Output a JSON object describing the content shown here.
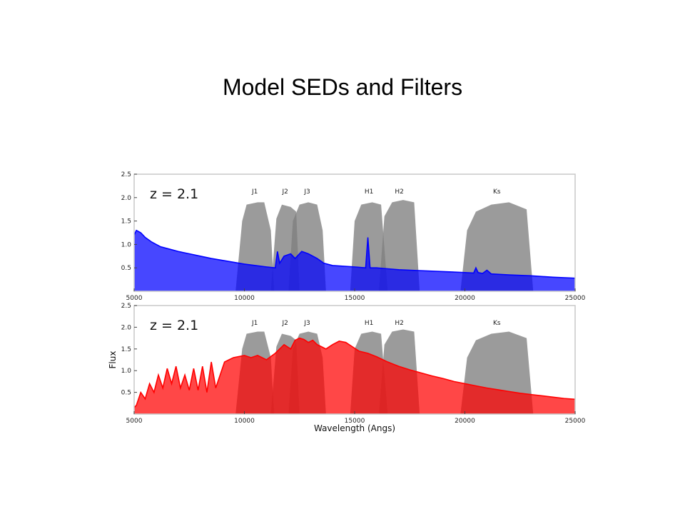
{
  "slide": {
    "title": "Model SEDs and Filters"
  },
  "colors": {
    "filter": "#7f7f7f",
    "blue_sed": "#0000ff",
    "red_sed": "#ff0000",
    "frame": "#c8c8c8"
  },
  "chart_data": [
    {
      "type": "area",
      "annotation": "z = 2.1",
      "xlabel": "",
      "ylabel": "",
      "xlim": [
        5000,
        25000
      ],
      "ylim": [
        0,
        2.5
      ],
      "xticks": [
        5000,
        10000,
        15000,
        20000,
        25000
      ],
      "yticks": [
        0.5,
        1.0,
        1.5,
        2.0,
        2.5
      ],
      "grid": false,
      "filters": [
        {
          "name": "J1",
          "x": [
            9600,
            9900,
            10100,
            10600,
            10900,
            11200,
            11350
          ],
          "y": [
            0,
            1.5,
            1.85,
            1.9,
            1.9,
            1.3,
            0
          ]
        },
        {
          "name": "J2",
          "x": [
            11200,
            11450,
            11700,
            12100,
            12350,
            12500
          ],
          "y": [
            0,
            1.55,
            1.85,
            1.8,
            1.7,
            0
          ]
        },
        {
          "name": "J3",
          "x": [
            12000,
            12200,
            12500,
            12900,
            13300,
            13550,
            13700
          ],
          "y": [
            0,
            1.5,
            1.85,
            1.9,
            1.85,
            1.3,
            0
          ]
        },
        {
          "name": "H1",
          "x": [
            14800,
            15000,
            15300,
            15800,
            16200,
            16500
          ],
          "y": [
            0,
            1.5,
            1.85,
            1.9,
            1.85,
            0
          ]
        },
        {
          "name": "H2",
          "x": [
            16100,
            16350,
            16700,
            17200,
            17700,
            17950
          ],
          "y": [
            0,
            1.6,
            1.9,
            1.95,
            1.9,
            0
          ]
        },
        {
          "name": "Ks",
          "x": [
            19800,
            20100,
            20500,
            21200,
            22000,
            22800,
            23100
          ],
          "y": [
            0,
            1.3,
            1.7,
            1.85,
            1.9,
            1.75,
            0
          ]
        }
      ],
      "series": [
        {
          "x": [
            5000,
            5100,
            5300,
            5500,
            5800,
            6200,
            6600,
            7000,
            7500,
            8000,
            8500,
            9000,
            9500,
            10000,
            10500,
            11000,
            11400,
            11500,
            11600,
            11800,
            12100,
            12300,
            12600,
            12900,
            13300,
            13600,
            14000,
            15000,
            15500,
            15600,
            15700,
            16000,
            16500,
            17000,
            18000,
            19000,
            20000,
            20400,
            20500,
            20600,
            20800,
            21000,
            21200,
            22000,
            23000,
            24000,
            25000
          ],
          "y": [
            1.2,
            1.3,
            1.25,
            1.15,
            1.05,
            0.95,
            0.9,
            0.85,
            0.8,
            0.75,
            0.7,
            0.66,
            0.62,
            0.58,
            0.55,
            0.52,
            0.5,
            0.85,
            0.6,
            0.75,
            0.8,
            0.7,
            0.85,
            0.8,
            0.7,
            0.6,
            0.55,
            0.52,
            0.5,
            1.15,
            0.5,
            0.5,
            0.48,
            0.46,
            0.44,
            0.42,
            0.4,
            0.39,
            0.5,
            0.4,
            0.38,
            0.45,
            0.37,
            0.35,
            0.33,
            0.3,
            0.28
          ]
        }
      ]
    },
    {
      "type": "area",
      "annotation": "z = 2.1",
      "xlabel": "Wavelength (Angs)",
      "ylabel": "Flux",
      "xlim": [
        5000,
        25000
      ],
      "ylim": [
        0,
        2.5
      ],
      "xticks": [
        5000,
        10000,
        15000,
        20000,
        25000
      ],
      "yticks": [
        0.5,
        1.0,
        1.5,
        2.0,
        2.5
      ],
      "grid": false,
      "filters": [
        {
          "name": "J1",
          "x": [
            9600,
            9900,
            10100,
            10600,
            10900,
            11200,
            11350
          ],
          "y": [
            0,
            1.5,
            1.85,
            1.9,
            1.9,
            1.3,
            0
          ]
        },
        {
          "name": "J2",
          "x": [
            11200,
            11450,
            11700,
            12100,
            12350,
            12500
          ],
          "y": [
            0,
            1.55,
            1.85,
            1.8,
            1.7,
            0
          ]
        },
        {
          "name": "J3",
          "x": [
            12000,
            12200,
            12500,
            12900,
            13300,
            13550,
            13700
          ],
          "y": [
            0,
            1.5,
            1.85,
            1.9,
            1.85,
            1.3,
            0
          ]
        },
        {
          "name": "H1",
          "x": [
            14800,
            15000,
            15300,
            15800,
            16200,
            16500
          ],
          "y": [
            0,
            1.5,
            1.85,
            1.9,
            1.85,
            0
          ]
        },
        {
          "name": "H2",
          "x": [
            16100,
            16350,
            16700,
            17200,
            17700,
            17950
          ],
          "y": [
            0,
            1.6,
            1.9,
            1.95,
            1.9,
            0
          ]
        },
        {
          "name": "Ks",
          "x": [
            19800,
            20100,
            20500,
            21200,
            22000,
            22800,
            23100
          ],
          "y": [
            0,
            1.3,
            1.7,
            1.85,
            1.9,
            1.75,
            0
          ]
        }
      ],
      "series": [
        {
          "x": [
            5000,
            5100,
            5300,
            5500,
            5700,
            5900,
            6100,
            6300,
            6500,
            6700,
            6900,
            7100,
            7300,
            7500,
            7700,
            7900,
            8100,
            8300,
            8500,
            8700,
            8900,
            9100,
            9300,
            9500,
            9700,
            10000,
            10300,
            10600,
            11000,
            11400,
            11800,
            12100,
            12300,
            12500,
            12700,
            12900,
            13100,
            13300,
            13500,
            13700,
            14000,
            14300,
            14600,
            14900,
            15200,
            15600,
            16000,
            16500,
            17000,
            17500,
            18000,
            18500,
            19000,
            19500,
            20000,
            20500,
            21000,
            21500,
            22000,
            22500,
            23000,
            23500,
            24000,
            24500,
            25000
          ],
          "y": [
            0.15,
            0.2,
            0.5,
            0.35,
            0.7,
            0.5,
            0.9,
            0.6,
            1.05,
            0.7,
            1.1,
            0.6,
            0.9,
            0.55,
            1.05,
            0.55,
            1.1,
            0.5,
            1.2,
            0.6,
            0.9,
            1.2,
            1.25,
            1.3,
            1.32,
            1.35,
            1.3,
            1.35,
            1.25,
            1.4,
            1.6,
            1.5,
            1.7,
            1.75,
            1.72,
            1.65,
            1.7,
            1.6,
            1.55,
            1.5,
            1.6,
            1.68,
            1.65,
            1.55,
            1.45,
            1.4,
            1.32,
            1.2,
            1.1,
            1.02,
            0.95,
            0.88,
            0.82,
            0.75,
            0.7,
            0.65,
            0.6,
            0.56,
            0.52,
            0.48,
            0.45,
            0.42,
            0.39,
            0.36,
            0.34
          ]
        }
      ]
    }
  ]
}
